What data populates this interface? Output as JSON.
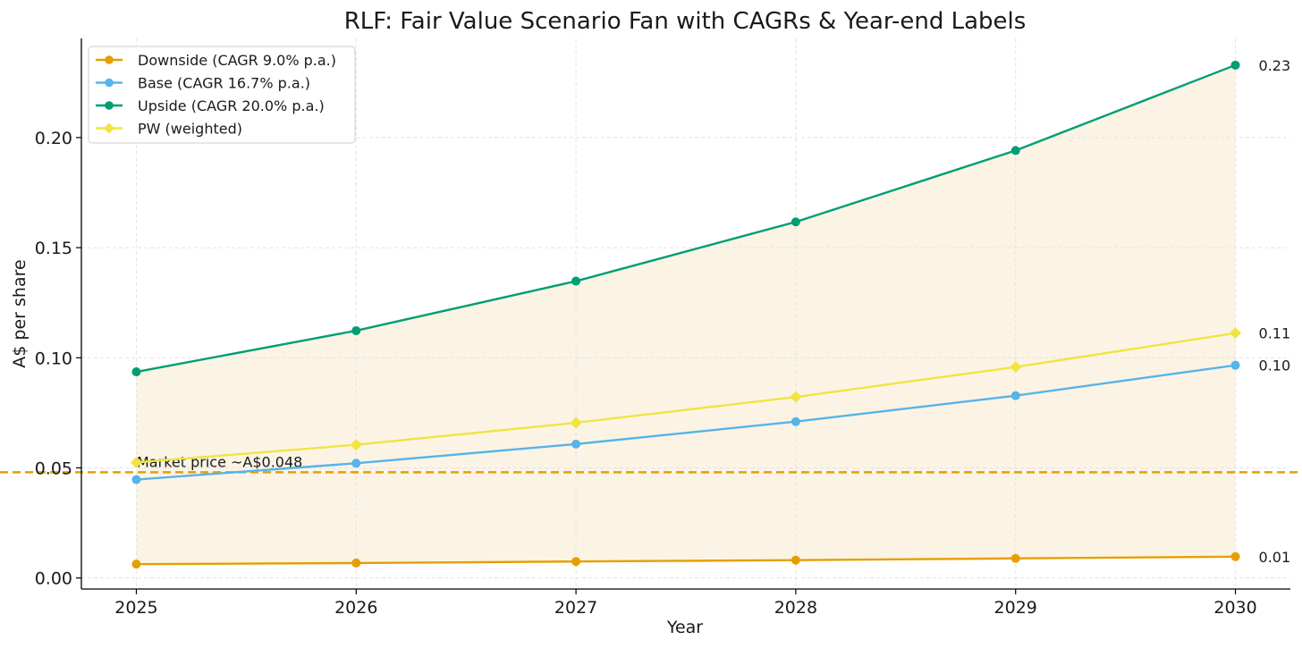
{
  "chart_data": {
    "type": "line",
    "title": "RLF: Fair Value Scenario Fan with CAGRs & Year-end Labels",
    "xlabel": "Year",
    "ylabel": "A$ per share",
    "x": [
      2025,
      2026,
      2027,
      2028,
      2029,
      2030
    ],
    "xlim": [
      2024.75,
      2030.25
    ],
    "ylim": [
      -0.005,
      0.245
    ],
    "yticks": [
      0.0,
      0.05,
      0.1,
      0.15,
      0.2
    ],
    "ytick_labels": [
      "0.00",
      "0.05",
      "0.10",
      "0.15",
      "0.20"
    ],
    "xtick_labels": [
      "2025",
      "2026",
      "2027",
      "2028",
      "2029",
      "2030"
    ],
    "grid": true,
    "legend_position": "top-left",
    "series": [
      {
        "name": "Downside (CAGR 9.0% p.a.)",
        "color": "#e69f00",
        "marker": "circle",
        "values": [
          0.0063,
          0.0068,
          0.0075,
          0.0081,
          0.0089,
          0.0097
        ],
        "end_label": "0.01"
      },
      {
        "name": "Base (CAGR 16.7% p.a.)",
        "color": "#56b4e9",
        "marker": "circle",
        "values": [
          0.0447,
          0.0521,
          0.0608,
          0.071,
          0.0828,
          0.0966
        ],
        "end_label": "0.10"
      },
      {
        "name": "Upside (CAGR 20.0% p.a.)",
        "color": "#009e73",
        "marker": "circle",
        "values": [
          0.0936,
          0.1123,
          0.1348,
          0.1617,
          0.1941,
          0.2329
        ],
        "end_label": "0.23"
      },
      {
        "name": "PW (weighted)",
        "color": "#f0e442",
        "marker": "diamond",
        "values": [
          0.0525,
          0.0605,
          0.0705,
          0.0822,
          0.0958,
          0.1112
        ],
        "end_label": "0.11"
      }
    ],
    "fan": {
      "lower_series": "Downside (CAGR 9.0% p.a.)",
      "upper_series": "Upside (CAGR 20.0% p.a.)",
      "color": "#fbf4e5"
    },
    "reference_line": {
      "value": 0.048,
      "label": "Market price ~A$0.048",
      "color": "#e69f00"
    }
  }
}
